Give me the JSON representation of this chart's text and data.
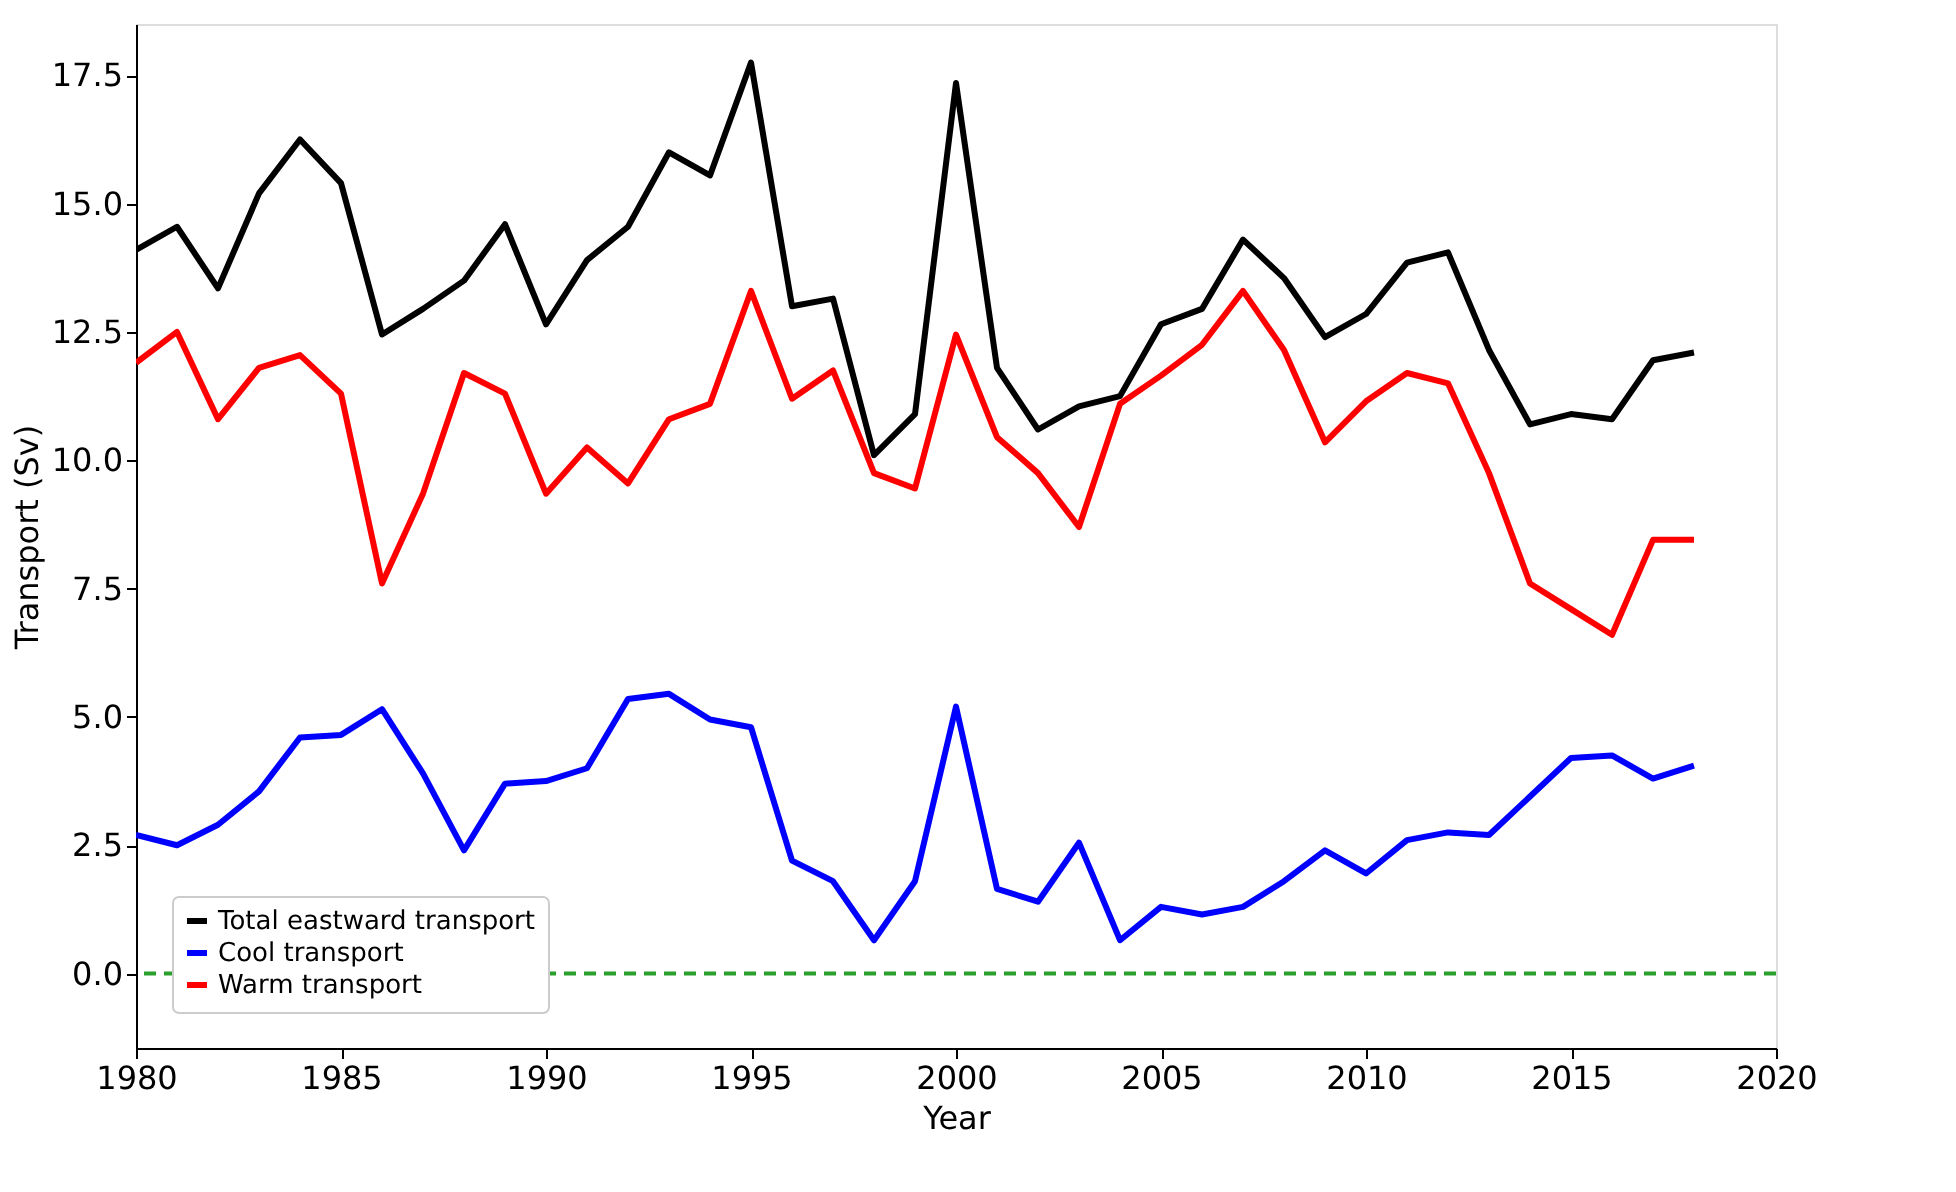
{
  "chart_data": {
    "type": "line",
    "xlabel": "Year",
    "ylabel": "Transport (Sv)",
    "x": [
      1980,
      1981,
      1982,
      1983,
      1984,
      1985,
      1986,
      1987,
      1988,
      1989,
      1990,
      1991,
      1992,
      1993,
      1994,
      1995,
      1996,
      1997,
      1998,
      1999,
      2000,
      2001,
      2002,
      2003,
      2004,
      2005,
      2006,
      2007,
      2008,
      2009,
      2010,
      2011,
      2012,
      2013,
      2014,
      2015,
      2016,
      2017,
      2018
    ],
    "series": [
      {
        "name": "Total eastward transport",
        "color": "#000000",
        "values": [
          14.1,
          14.55,
          13.35,
          15.2,
          16.25,
          15.4,
          12.45,
          12.95,
          13.5,
          14.6,
          12.65,
          13.9,
          14.55,
          16.0,
          15.55,
          17.75,
          13.0,
          13.15,
          10.1,
          10.9,
          17.35,
          11.8,
          10.6,
          11.05,
          11.25,
          12.65,
          12.95,
          14.3,
          13.55,
          12.4,
          12.85,
          13.85,
          14.05,
          12.15,
          10.7,
          10.9,
          10.8,
          11.95,
          12.1
        ]
      },
      {
        "name": "Cool transport",
        "color": "#0000ff",
        "values": [
          2.7,
          2.5,
          2.9,
          3.55,
          4.6,
          4.65,
          5.15,
          3.9,
          2.4,
          3.7,
          3.75,
          4.0,
          5.35,
          5.45,
          4.95,
          4.8,
          2.2,
          1.8,
          0.65,
          1.8,
          5.2,
          1.65,
          1.4,
          2.55,
          0.65,
          1.3,
          1.15,
          1.3,
          1.8,
          2.4,
          1.95,
          2.6,
          2.75,
          2.7,
          3.45,
          4.2,
          4.25,
          3.8,
          4.05
        ]
      },
      {
        "name": "Warm transport",
        "color": "#ff0000",
        "values": [
          11.9,
          12.5,
          10.8,
          11.8,
          12.05,
          11.3,
          7.6,
          9.35,
          11.7,
          11.3,
          9.35,
          10.25,
          9.55,
          10.8,
          11.1,
          13.3,
          11.2,
          11.75,
          9.75,
          9.45,
          12.45,
          10.45,
          9.75,
          8.7,
          11.1,
          11.65,
          12.25,
          13.3,
          12.15,
          10.35,
          11.15,
          11.7,
          11.5,
          9.75,
          7.6,
          7.1,
          6.6,
          8.45,
          8.45
        ]
      }
    ],
    "xlim": [
      1980,
      2020
    ],
    "xticks": [
      1980,
      1985,
      1990,
      1995,
      2000,
      2005,
      2010,
      2015,
      2020
    ],
    "ylim": [
      -1.45,
      18.5
    ],
    "yticks": [
      {
        "value": 0,
        "label": "0.0"
      },
      2.5,
      {
        "value": 5,
        "label": "5.0"
      },
      7.5,
      {
        "value": 10,
        "label": "10.0"
      },
      12.5,
      {
        "value": 15,
        "label": "15.0"
      },
      17.5
    ],
    "ref_lines": [
      {
        "axis": "y",
        "value": 0,
        "color": "#2ca02c",
        "line_style": "dashed"
      }
    ],
    "grid": false,
    "legend": "bottom left",
    "line_style": "solid",
    "marker": "none"
  }
}
